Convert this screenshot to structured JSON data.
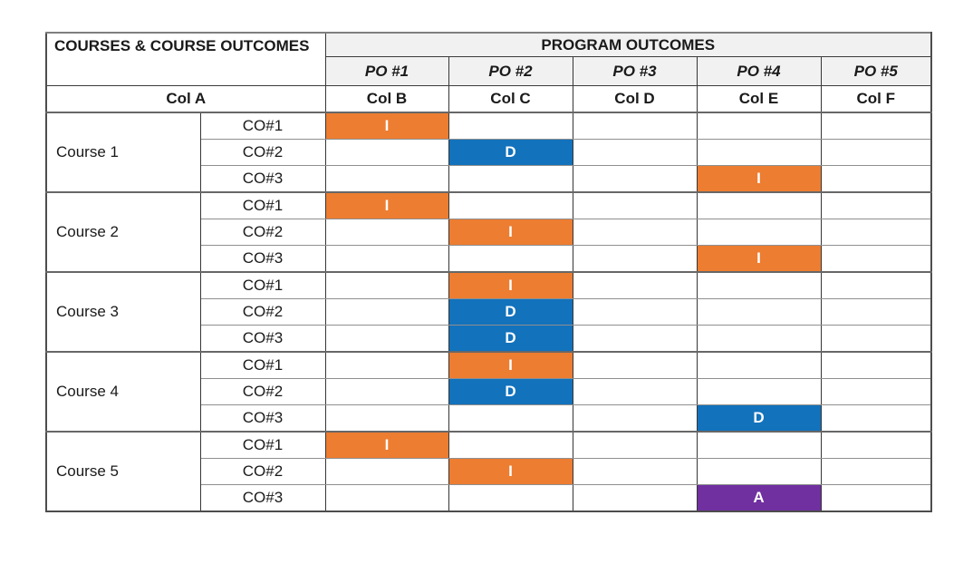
{
  "table": {
    "corner_title": "COURSES & COURSE OUTCOMES",
    "program_outcomes_title": "PROGRAM OUTCOMES",
    "po_labels": [
      "PO #1",
      "PO #2",
      "PO #3",
      "PO #4",
      "PO #5"
    ],
    "col_labels": [
      "Col A",
      "Col B",
      "Col C",
      "Col D",
      "Col E",
      "Col F"
    ],
    "header_bg": "#F1F1F1",
    "levels": {
      "I": "#ED7D31",
      "D": "#1272BC",
      "A": "#7030A0"
    },
    "courses": [
      {
        "name": "Course 1",
        "rows": [
          {
            "co": "CO#1",
            "cells": [
              "I",
              "",
              "",
              "",
              ""
            ]
          },
          {
            "co": "CO#2",
            "cells": [
              "",
              "D",
              "",
              "",
              ""
            ]
          },
          {
            "co": "CO#3",
            "cells": [
              "",
              "",
              "",
              "I",
              ""
            ]
          }
        ]
      },
      {
        "name": "Course 2",
        "rows": [
          {
            "co": "CO#1",
            "cells": [
              "I",
              "",
              "",
              "",
              ""
            ]
          },
          {
            "co": "CO#2",
            "cells": [
              "",
              "I",
              "",
              "",
              ""
            ]
          },
          {
            "co": "CO#3",
            "cells": [
              "",
              "",
              "",
              "I",
              ""
            ]
          }
        ]
      },
      {
        "name": "Course 3",
        "rows": [
          {
            "co": "CO#1",
            "cells": [
              "",
              "I",
              "",
              "",
              ""
            ]
          },
          {
            "co": "CO#2",
            "cells": [
              "",
              "D",
              "",
              "",
              ""
            ]
          },
          {
            "co": "CO#3",
            "cells": [
              "",
              "D",
              "",
              "",
              ""
            ]
          }
        ]
      },
      {
        "name": "Course 4",
        "rows": [
          {
            "co": "CO#1",
            "cells": [
              "",
              "I",
              "",
              "",
              ""
            ]
          },
          {
            "co": "CO#2",
            "cells": [
              "",
              "D",
              "",
              "",
              ""
            ]
          },
          {
            "co": "CO#3",
            "cells": [
              "",
              "",
              "",
              "D",
              ""
            ]
          }
        ]
      },
      {
        "name": "Course 5",
        "rows": [
          {
            "co": "CO#1",
            "cells": [
              "I",
              "",
              "",
              "",
              ""
            ]
          },
          {
            "co": "CO#2",
            "cells": [
              "",
              "I",
              "",
              "",
              ""
            ]
          },
          {
            "co": "CO#3",
            "cells": [
              "",
              "",
              "",
              "A",
              ""
            ]
          }
        ]
      }
    ]
  }
}
